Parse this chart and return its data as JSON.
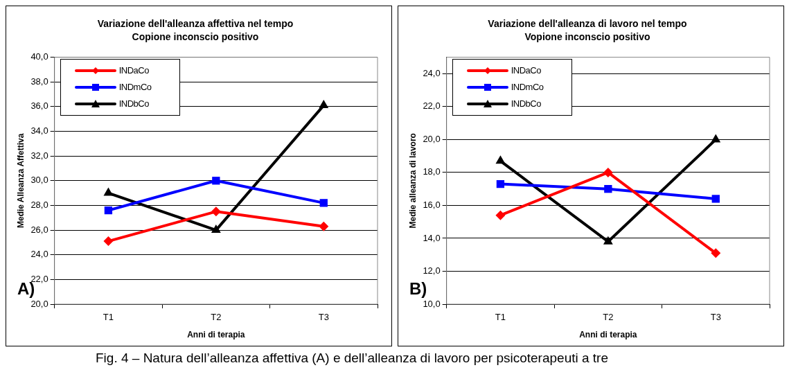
{
  "chart_data": [
    {
      "type": "line",
      "title": "Variazione dell'alleanza affettiva nel tempo",
      "subtitle": "Copione inconscio positivo",
      "xlabel": "Anni di terapia",
      "ylabel": "Medie Alleanza Affettiva",
      "annotations": [
        "A)",
        "Fig. 4 – Natura dell’alleanza affettiva (A) e dell’alleanza di lavoro per psicoterapeuti a tre"
      ],
      "categories": [
        "T1",
        "T2",
        "T3"
      ],
      "series": [
        {
          "name": "INDaCo",
          "color": "#ff0000",
          "marker": "diamond",
          "values": [
            25.1,
            27.5,
            26.3
          ]
        },
        {
          "name": "INDmCo",
          "color": "#0000ff",
          "marker": "square",
          "values": [
            27.6,
            30.0,
            28.2
          ]
        },
        {
          "name": "INDbCo",
          "color": "#000000",
          "marker": "triangle",
          "values": [
            29.0,
            26.0,
            36.1
          ]
        }
      ],
      "ylim": [
        20,
        40
      ],
      "yticks": [
        {
          "value": 20,
          "label": "20,0"
        },
        {
          "value": 22,
          "label": "22,0"
        },
        {
          "value": 24,
          "label": "24,0"
        },
        {
          "value": 26,
          "label": "26,0"
        },
        {
          "value": 28,
          "label": "28,0"
        },
        {
          "value": 30,
          "label": "30,0"
        },
        {
          "value": 32,
          "label": "32,0"
        },
        {
          "value": 34,
          "label": "34,0"
        },
        {
          "value": 36,
          "label": "36,0"
        },
        {
          "value": 38,
          "label": "38,0"
        },
        {
          "value": 40,
          "label": "40,0"
        }
      ],
      "grid": "y",
      "legend": "top left"
    },
    {
      "type": "line",
      "title": "Variazione dell'alleanza di lavoro nel tempo",
      "subtitle": "Vopione inconscio positivo",
      "xlabel": "Anni di terapia",
      "ylabel": "Medie alleanza di lavoro",
      "annotations": [
        "B)"
      ],
      "categories": [
        "T1",
        "T2",
        "T3"
      ],
      "series": [
        {
          "name": "INDaCo",
          "color": "#ff0000",
          "marker": "diamond",
          "values": [
            15.4,
            18.0,
            13.1
          ]
        },
        {
          "name": "INDmCo",
          "color": "#0000ff",
          "marker": "square",
          "values": [
            17.3,
            17.0,
            16.4
          ]
        },
        {
          "name": "INDbCo",
          "color": "#000000",
          "marker": "triangle",
          "values": [
            18.7,
            13.8,
            20.0
          ]
        }
      ],
      "ylim": [
        10,
        25
      ],
      "yticks": [
        {
          "value": 10,
          "label": "10,0"
        },
        {
          "value": 12,
          "label": "12,0"
        },
        {
          "value": 14,
          "label": "14,0"
        },
        {
          "value": 16,
          "label": "16,0"
        },
        {
          "value": 18,
          "label": "18,0"
        },
        {
          "value": 20,
          "label": "20,0"
        },
        {
          "value": 22,
          "label": "22,0"
        },
        {
          "value": 24,
          "label": "24,0"
        }
      ],
      "grid": "y",
      "legend": "top left"
    }
  ]
}
